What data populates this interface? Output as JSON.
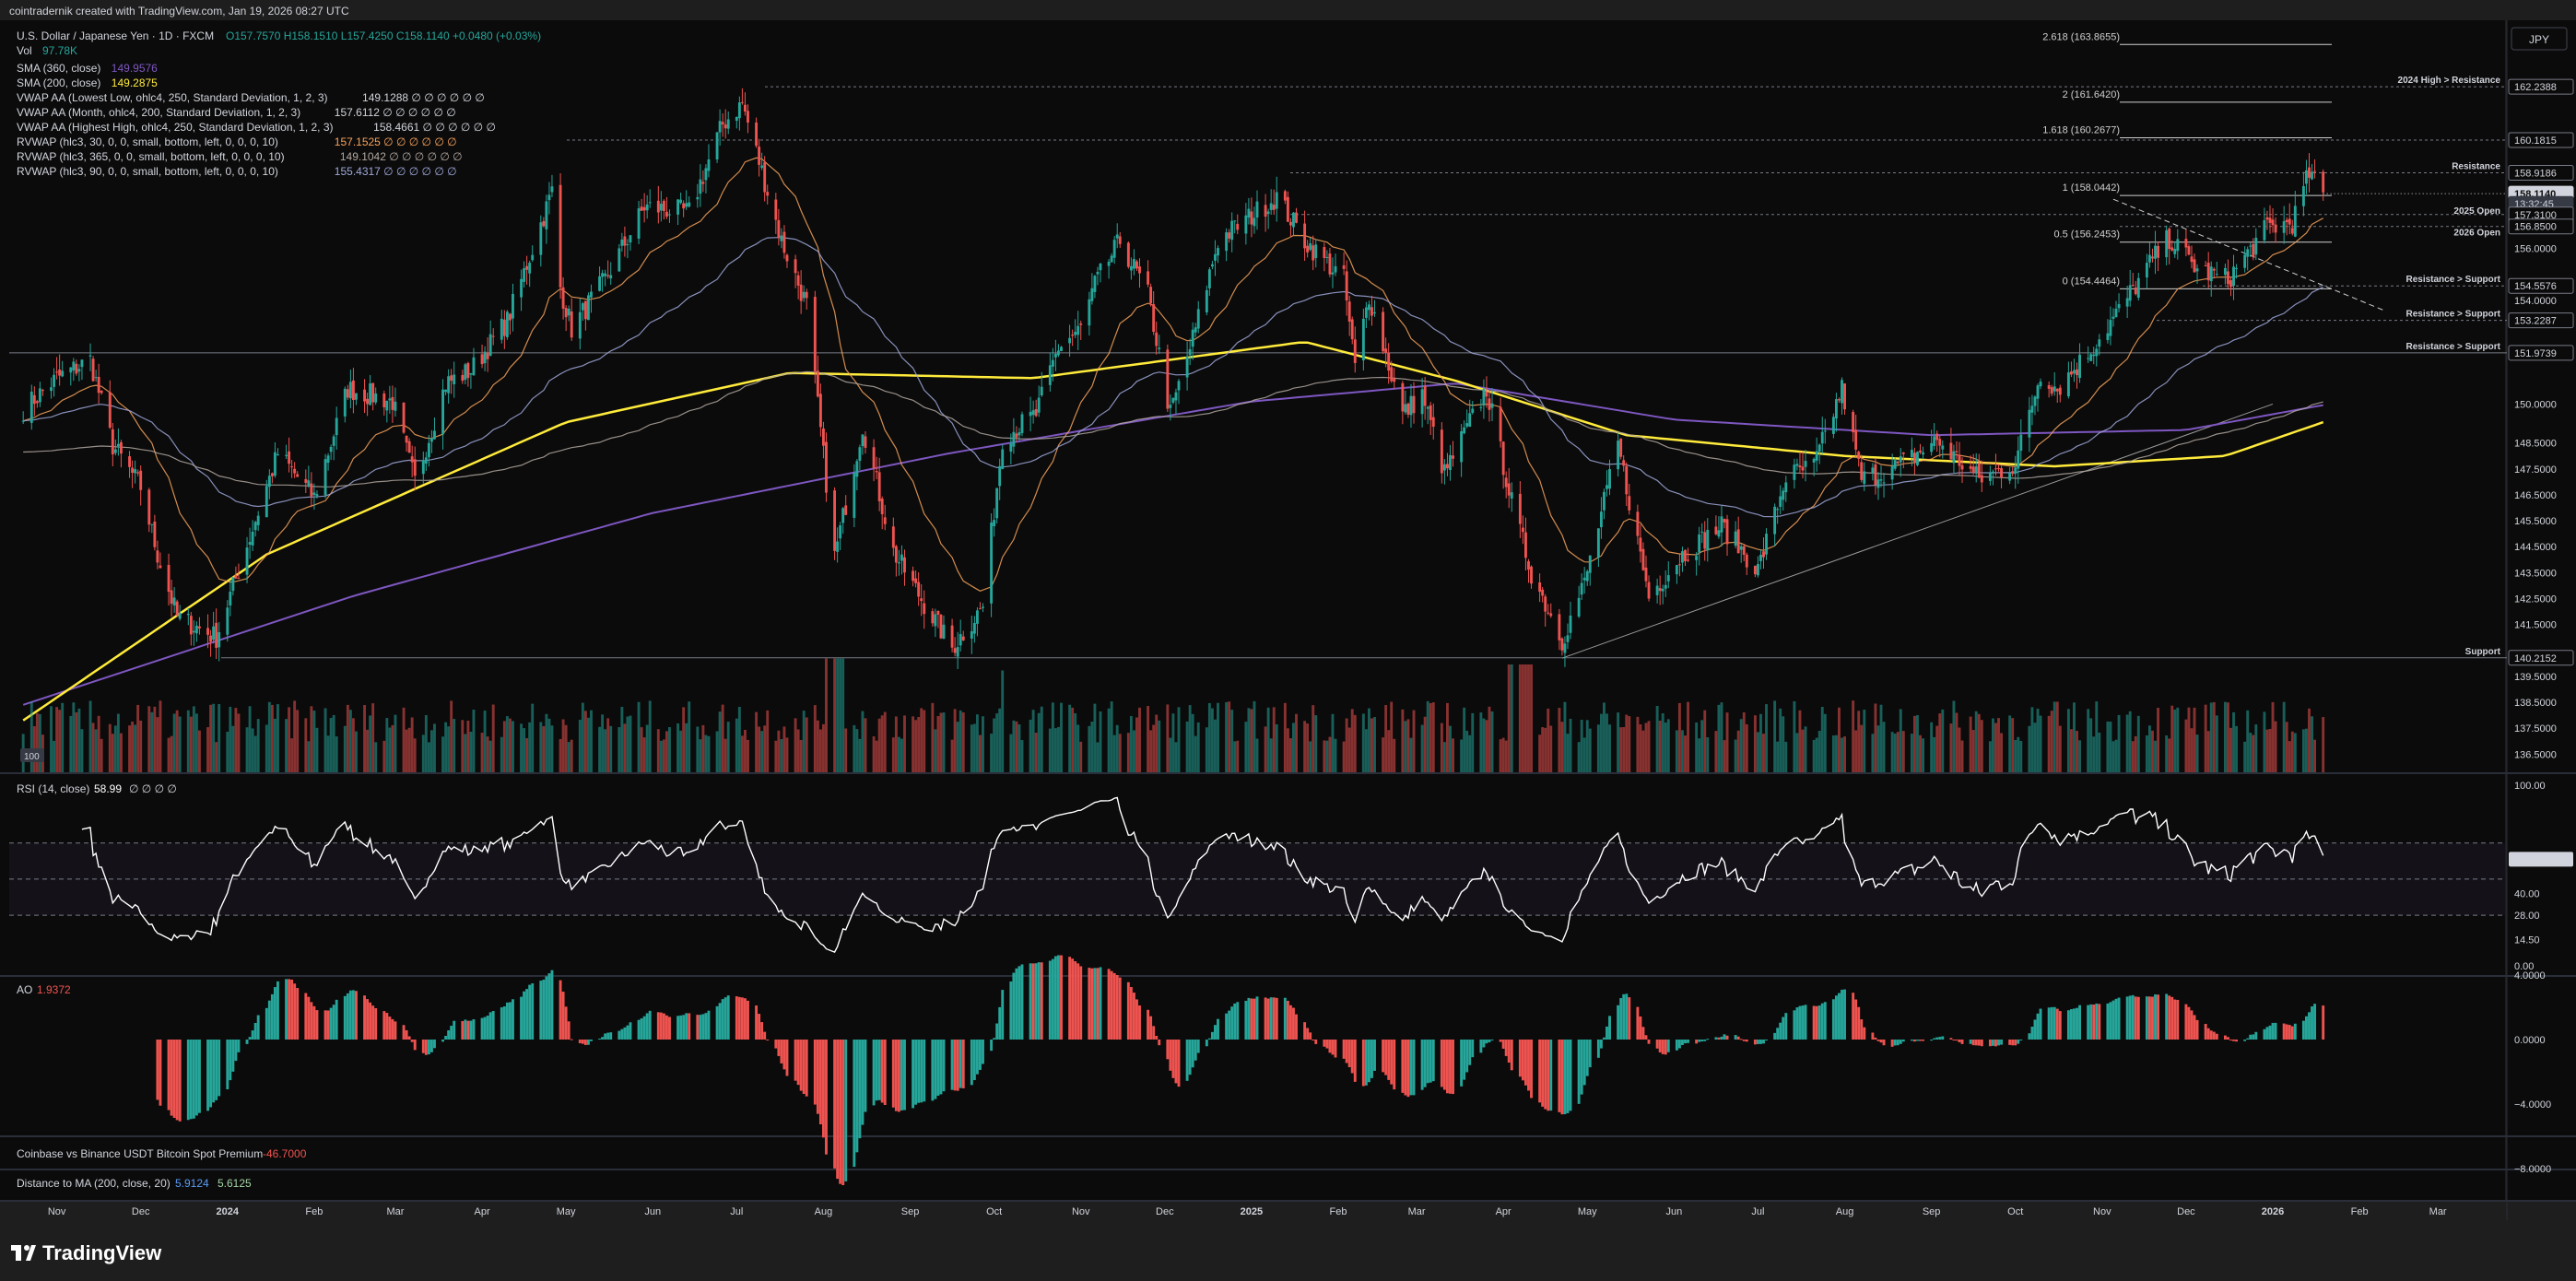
{
  "header": {
    "attribution": "cointradernik created with TradingView.com, Jan 19, 2026 08:27 UTC"
  },
  "legend": {
    "symbol": "U.S. Dollar / Japanese Yen · 1D · FXCM",
    "ohlc": "O157.7570 H158.1510 L157.4250 C158.1140 +0.0480 (+0.03%)",
    "vol_label": "Vol",
    "vol_value": "97.78K",
    "rows": [
      {
        "label": "SMA (360, close)",
        "value": "149.9576",
        "color": "#7e57c2"
      },
      {
        "label": "SMA (200, close)",
        "value": "149.2875",
        "color": "#ffeb3b"
      },
      {
        "label": "VWAP AA (Lowest Low, ohlc4, 250, Standard Deviation, 1, 2, 3)",
        "value": "149.1288 ∅ ∅ ∅ ∅ ∅ ∅",
        "color": "#d1d4dc"
      },
      {
        "label": "VWAP AA (Month, ohlc4, 200, Standard Deviation, 1, 2, 3)",
        "value": "157.6112 ∅ ∅ ∅ ∅ ∅ ∅",
        "color": "#d1d4dc"
      },
      {
        "label": "VWAP AA (Highest High, ohlc4, 250, Standard Deviation, 1, 2, 3)",
        "value": "158.4661 ∅ ∅ ∅ ∅ ∅ ∅",
        "color": "#d1d4dc"
      },
      {
        "label": "RVWAP (hlc3, 30, 0, 0, small, bottom, left, 0, 0, 0, 10)",
        "value": "157.1525 ∅ ∅ ∅ ∅ ∅ ∅",
        "color": "#f7a35c"
      },
      {
        "label": "RVWAP (hlc3, 365, 0, 0, small, bottom, left, 0, 0, 0, 10)",
        "value": "149.1042 ∅ ∅ ∅ ∅ ∅ ∅",
        "color": "#b2a7a0"
      },
      {
        "label": "RVWAP (hlc3, 90, 0, 0, small, bottom, left, 0, 0, 0, 10)",
        "value": "155.4317 ∅ ∅ ∅ ∅ ∅ ∅",
        "color": "#9fa8da"
      }
    ]
  },
  "currency_button": "JPY",
  "price_axis": {
    "ticks": [
      "156.0000",
      "154.0000",
      "150.0000",
      "148.5000",
      "147.5000",
      "146.5000",
      "145.5000",
      "144.5000",
      "143.5000",
      "142.5000",
      "141.5000",
      "139.5000",
      "138.5000",
      "137.5000",
      "136.5000"
    ],
    "labels": [
      {
        "value": "162.2388",
        "price": 162.2388
      },
      {
        "value": "160.1815",
        "price": 160.1815
      },
      {
        "value": "158.9186",
        "price": 158.9186
      },
      {
        "value": "158.1140",
        "price": 158.114,
        "current": true
      },
      {
        "value": "13:32:45",
        "price": 157.72,
        "timer": true
      },
      {
        "value": "157.3100",
        "price": 157.31
      },
      {
        "value": "156.8500",
        "price": 156.85
      },
      {
        "value": "154.5576",
        "price": 154.5576
      },
      {
        "value": "153.2287",
        "price": 153.2287
      },
      {
        "value": "151.9739",
        "price": 151.9739
      },
      {
        "value": "140.2152",
        "price": 140.2152
      }
    ]
  },
  "fib_levels": [
    {
      "label": "2.618 (163.8655)",
      "price": 163.8655
    },
    {
      "label": "2 (161.6420)",
      "price": 161.642
    },
    {
      "label": "1.618 (160.2677)",
      "price": 160.2677
    },
    {
      "label": "1 (158.0442)",
      "price": 158.0442
    },
    {
      "label": "0.5 (156.2453)",
      "price": 156.2453
    },
    {
      "label": "0 (154.4464)",
      "price": 154.4464
    }
  ],
  "level_notes": [
    {
      "label": "2024 High > Resistance",
      "price": 162.2388
    },
    {
      "label": "Resistance",
      "price": 158.9186
    },
    {
      "label": "2025 Open",
      "price": 157.31
    },
    {
      "label": "2026 Open",
      "price": 156.85
    },
    {
      "label": "Resistance > Support",
      "price": 154.5576
    },
    {
      "label": "Resistance > Support",
      "price": 153.2287
    },
    {
      "label": "Resistance > Support",
      "price": 151.9739
    },
    {
      "label": "Support",
      "price": 140.2152
    }
  ],
  "volume_badge": "100",
  "rsi": {
    "title": "RSI (14, close)",
    "value": "58.99",
    "extra": "∅ ∅ ∅ ∅",
    "ticks": [
      "100.00",
      "60.00",
      "40.00",
      "28.00",
      "14.50",
      "0.00"
    ],
    "current": 58.99
  },
  "ao": {
    "title": "AO",
    "value": "1.9372",
    "ticks": [
      "4.0000",
      "0.0000",
      "−4.0000",
      "−8.0000"
    ]
  },
  "premium_pane": {
    "title": "Coinbase vs Binance USDT Bitcoin Spot Premium",
    "value": "-46.7000"
  },
  "distance_pane": {
    "title": "Distance to MA (200, close, 20)",
    "value1": "5.9124",
    "value2": "5.6125"
  },
  "time_axis": [
    "Nov",
    "Dec",
    "2024",
    "Feb",
    "Mar",
    "Apr",
    "May",
    "Jun",
    "Jul",
    "Aug",
    "Sep",
    "Oct",
    "Nov",
    "Dec",
    "2025",
    "Feb",
    "Mar",
    "Apr",
    "May",
    "Jun",
    "Jul",
    "Aug",
    "Sep",
    "Oct",
    "Nov",
    "Dec",
    "2026",
    "Feb",
    "Mar"
  ],
  "brand": "TradingView",
  "colors": {
    "up": "#26a69a",
    "down": "#ef5350",
    "sma200": "#ffeb3b",
    "sma360": "#7e57c2",
    "rvwap30": "#f7a35c",
    "rvwap90": "#9fa8da",
    "rvwap365": "#b2a7a0"
  },
  "chart_data": {
    "type": "candlestick",
    "title": "U.S. Dollar / Japanese Yen · 1D · FXCM",
    "ylim": [
      135.8,
      164.8
    ],
    "x_range": [
      "2023-10-15",
      "2026-03-25"
    ],
    "close_path": [
      [
        "2023-10-20",
        149.8
      ],
      [
        "2023-11-01",
        151.0
      ],
      [
        "2023-11-13",
        151.7
      ],
      [
        "2023-11-21",
        148.4
      ],
      [
        "2023-12-01",
        146.8
      ],
      [
        "2023-12-07",
        144.2
      ],
      [
        "2023-12-14",
        141.8
      ],
      [
        "2023-12-28",
        141.0
      ],
      [
        "2024-01-10",
        145.2
      ],
      [
        "2024-01-19",
        148.1
      ],
      [
        "2024-02-01",
        146.4
      ],
      [
        "2024-02-13",
        150.6
      ],
      [
        "2024-02-29",
        150.1
      ],
      [
        "2024-03-08",
        147.0
      ],
      [
        "2024-03-19",
        150.8
      ],
      [
        "2024-03-28",
        151.3
      ],
      [
        "2024-04-10",
        153.2
      ],
      [
        "2024-04-26",
        158.2
      ],
      [
        "2024-04-29",
        154.5
      ],
      [
        "2024-05-03",
        152.9
      ],
      [
        "2024-05-15",
        154.8
      ],
      [
        "2024-05-29",
        157.6
      ],
      [
        "2024-06-14",
        157.4
      ],
      [
        "2024-06-26",
        160.8
      ],
      [
        "2024-07-03",
        161.6
      ],
      [
        "2024-07-11",
        158.6
      ],
      [
        "2024-07-17",
        156.3
      ],
      [
        "2024-07-26",
        153.8
      ],
      [
        "2024-08-05",
        144.1
      ],
      [
        "2024-08-15",
        149.2
      ],
      [
        "2024-08-26",
        144.3
      ],
      [
        "2024-09-06",
        142.3
      ],
      [
        "2024-09-16",
        140.6
      ],
      [
        "2024-09-27",
        142.2
      ],
      [
        "2024-10-04",
        148.7
      ],
      [
        "2024-10-16",
        149.6
      ],
      [
        "2024-10-24",
        152.2
      ],
      [
        "2024-11-01",
        152.9
      ],
      [
        "2024-11-06",
        154.6
      ],
      [
        "2024-11-15",
        156.3
      ],
      [
        "2024-11-25",
        154.2
      ],
      [
        "2024-12-03",
        149.6
      ],
      [
        "2024-12-12",
        152.9
      ],
      [
        "2024-12-20",
        156.3
      ],
      [
        "2025-01-10",
        158.0
      ],
      [
        "2025-01-20",
        156.3
      ],
      [
        "2025-02-03",
        154.8
      ],
      [
        "2025-02-07",
        151.4
      ],
      [
        "2025-02-12",
        154.2
      ],
      [
        "2025-02-24",
        149.6
      ],
      [
        "2025-03-03",
        150.4
      ],
      [
        "2025-03-11",
        147.3
      ],
      [
        "2025-03-26",
        150.6
      ],
      [
        "2025-04-04",
        146.2
      ],
      [
        "2025-04-11",
        143.5
      ],
      [
        "2025-04-22",
        140.9
      ],
      [
        "2025-04-30",
        143.1
      ],
      [
        "2025-05-12",
        148.4
      ],
      [
        "2025-05-23",
        142.6
      ],
      [
        "2025-06-04",
        144.2
      ],
      [
        "2025-06-18",
        145.3
      ],
      [
        "2025-07-01",
        143.6
      ],
      [
        "2025-07-11",
        147.2
      ],
      [
        "2025-07-21",
        147.6
      ],
      [
        "2025-07-31",
        150.6
      ],
      [
        "2025-08-07",
        147.1
      ],
      [
        "2025-08-20",
        147.6
      ],
      [
        "2025-09-03",
        148.6
      ],
      [
        "2025-09-18",
        147.1
      ],
      [
        "2025-10-01",
        147.7
      ],
      [
        "2025-10-10",
        151.2
      ],
      [
        "2025-10-16",
        150.6
      ],
      [
        "2025-10-28",
        152.1
      ],
      [
        "2025-11-07",
        153.6
      ],
      [
        "2025-11-18",
        155.4
      ],
      [
        "2025-11-25",
        156.4
      ],
      [
        "2025-12-05",
        155.2
      ],
      [
        "2025-12-16",
        154.8
      ],
      [
        "2025-12-30",
        156.8
      ],
      [
        "2026-01-08",
        157.0
      ],
      [
        "2026-01-14",
        158.9
      ],
      [
        "2026-01-19",
        158.1
      ]
    ],
    "sma200": [
      [
        "2023-10-20",
        137.8
      ],
      [
        "2024-01-15",
        144.2
      ],
      [
        "2024-05-01",
        149.3
      ],
      [
        "2024-07-20",
        151.2
      ],
      [
        "2024-10-15",
        151.0
      ],
      [
        "2025-01-20",
        152.4
      ],
      [
        "2025-03-15",
        150.9
      ],
      [
        "2025-05-15",
        148.8
      ],
      [
        "2025-08-01",
        148.0
      ],
      [
        "2025-10-15",
        147.6
      ],
      [
        "2025-12-15",
        148.0
      ],
      [
        "2026-01-19",
        149.3
      ]
    ],
    "sma360": [
      [
        "2023-10-20",
        138.4
      ],
      [
        "2024-02-15",
        142.6
      ],
      [
        "2024-06-01",
        145.8
      ],
      [
        "2024-09-15",
        148.1
      ],
      [
        "2025-01-01",
        150.1
      ],
      [
        "2025-03-15",
        150.8
      ],
      [
        "2025-06-01",
        149.4
      ],
      [
        "2025-09-01",
        148.8
      ],
      [
        "2025-12-01",
        149.0
      ],
      [
        "2026-01-19",
        149.96
      ]
    ],
    "volume": "approx. daily bars, spikes at Aug 2024 and Apr 2025",
    "rsi_last": 58.99,
    "ao_last": 1.9372
  }
}
